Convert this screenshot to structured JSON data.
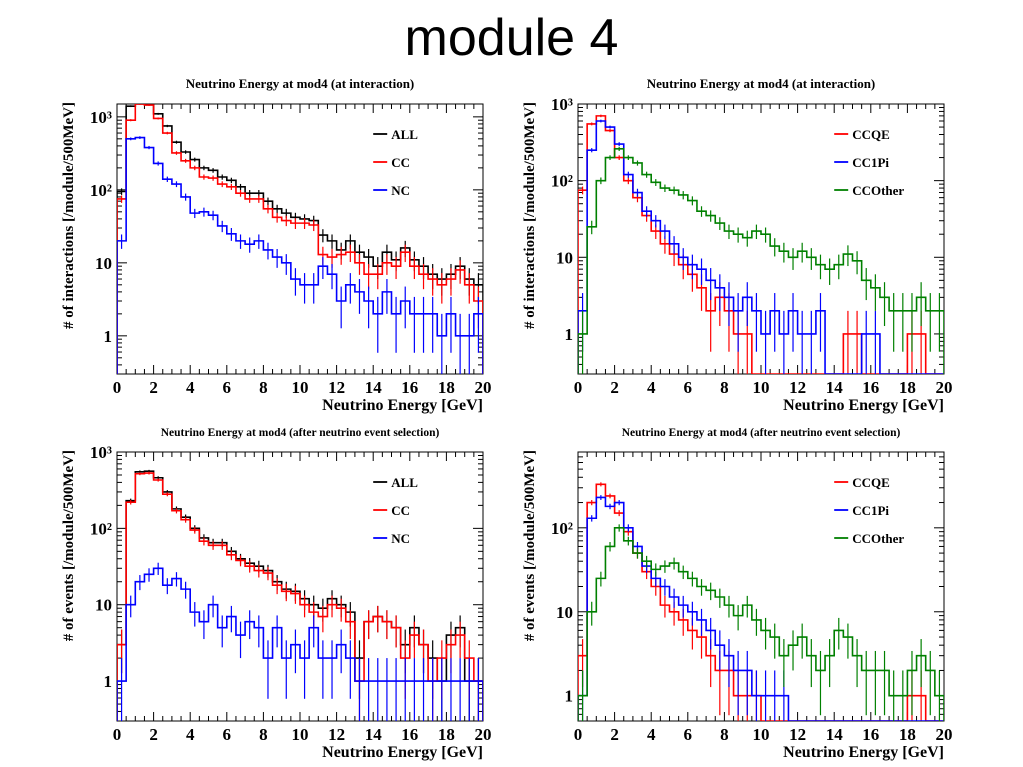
{
  "page": {
    "title": "module 4"
  },
  "chart_data": [
    {
      "type": "line",
      "title": "Neutrino Energy at mod4 (at interaction)",
      "xlabel": "Neutrino Energy [GeV]",
      "ylabel": "# of interactions [/module/500MeV]",
      "xlim": [
        0,
        20
      ],
      "ylim": [
        0.3,
        1500
      ],
      "yscale": "log",
      "xticks": [
        0,
        2,
        4,
        6,
        8,
        10,
        12,
        14,
        16,
        18,
        20
      ],
      "yticks": [
        {
          "v": 1,
          "label": "1"
        },
        {
          "v": 10,
          "label": "10"
        },
        {
          "v": 100,
          "label": "10²"
        },
        {
          "v": 1000,
          "label": "10³"
        }
      ],
      "legend_position": "top-right",
      "x": [
        0.25,
        0.75,
        1.25,
        1.75,
        2.25,
        2.75,
        3.25,
        3.75,
        4.25,
        4.75,
        5.25,
        5.75,
        6.25,
        6.75,
        7.25,
        7.75,
        8.25,
        8.75,
        9.25,
        9.75,
        10.25,
        10.75,
        11.25,
        11.75,
        12.25,
        12.75,
        13.25,
        13.75,
        14.25,
        14.75,
        15.25,
        15.75,
        16.25,
        16.75,
        17.25,
        17.75,
        18.25,
        18.75,
        19.25,
        19.75
      ],
      "series": [
        {
          "name": "ALL",
          "color": "#000000",
          "values": [
            95,
            1400,
            1950,
            1700,
            1100,
            750,
            450,
            330,
            260,
            200,
            185,
            150,
            135,
            110,
            90,
            90,
            70,
            55,
            48,
            42,
            40,
            38,
            24,
            20,
            15,
            20,
            14,
            12,
            9,
            14,
            11,
            16,
            11,
            9,
            7,
            6,
            7,
            9,
            6,
            5
          ]
        },
        {
          "name": "CC",
          "color": "#ff0000",
          "values": [
            75,
            900,
            1500,
            1450,
            950,
            600,
            320,
            250,
            200,
            150,
            145,
            120,
            110,
            90,
            75,
            75,
            55,
            42,
            38,
            35,
            35,
            33,
            13,
            12,
            13,
            14,
            10,
            7,
            7,
            10,
            9,
            14,
            9,
            7,
            6,
            5,
            6,
            8,
            5,
            3
          ]
        },
        {
          "name": "NC",
          "color": "#0000ff",
          "values": [
            20,
            500,
            520,
            380,
            230,
            140,
            120,
            80,
            48,
            50,
            45,
            32,
            25,
            20,
            18,
            20,
            15,
            12,
            10,
            6,
            5,
            5,
            9,
            7,
            3,
            5,
            4,
            3,
            2,
            4,
            2,
            3,
            2,
            2,
            2,
            1,
            2,
            1,
            1,
            2
          ]
        }
      ]
    },
    {
      "type": "line",
      "title": "Neutrino Energy at mod4 (at interaction)",
      "xlabel": "Neutrino Energy [GeV]",
      "ylabel": "# of interactions [/module/500MeV]",
      "xlim": [
        0,
        20
      ],
      "ylim": [
        0.3,
        1000
      ],
      "yscale": "log",
      "xticks": [
        0,
        2,
        4,
        6,
        8,
        10,
        12,
        14,
        16,
        18,
        20
      ],
      "yticks": [
        {
          "v": 1,
          "label": "1"
        },
        {
          "v": 10,
          "label": "10"
        },
        {
          "v": 100,
          "label": "10²"
        },
        {
          "v": 1000,
          "label": "10³"
        }
      ],
      "legend_position": "top-right",
      "x": [
        0.25,
        0.75,
        1.25,
        1.75,
        2.25,
        2.75,
        3.25,
        3.75,
        4.25,
        4.75,
        5.25,
        5.75,
        6.25,
        6.75,
        7.25,
        7.75,
        8.25,
        8.75,
        9.25,
        9.75,
        10.25,
        10.75,
        11.25,
        11.75,
        12.25,
        12.75,
        13.25,
        13.75,
        14.25,
        14.75,
        15.25,
        15.75,
        16.25,
        16.75,
        17.25,
        17.75,
        18.25,
        18.75,
        19.25,
        19.75
      ],
      "series": [
        {
          "name": "CCQE",
          "color": "#ff0000",
          "values": [
            75,
            550,
            700,
            450,
            200,
            100,
            60,
            35,
            22,
            15,
            11,
            8,
            6,
            4,
            2,
            3,
            2,
            1,
            1,
            0,
            0,
            0,
            0,
            0,
            0,
            0,
            0,
            0,
            0,
            1,
            1,
            0,
            0,
            0,
            0,
            0,
            1,
            1,
            0,
            0
          ]
        },
        {
          "name": "CC1Pi",
          "color": "#0000ff",
          "values": [
            2,
            250,
            600,
            500,
            300,
            120,
            70,
            40,
            30,
            22,
            15,
            10,
            8,
            7,
            5,
            4,
            3,
            2,
            3,
            2,
            1,
            2,
            1,
            2,
            1,
            1,
            2,
            0,
            0,
            0,
            0,
            1,
            1,
            0,
            0,
            0,
            0,
            0,
            0,
            0
          ]
        },
        {
          "name": "CCOther",
          "color": "#008000",
          "values": [
            1,
            25,
            100,
            200,
            260,
            200,
            170,
            120,
            95,
            80,
            75,
            65,
            55,
            40,
            35,
            28,
            22,
            20,
            18,
            22,
            20,
            14,
            12,
            10,
            12,
            10,
            8,
            7,
            8,
            11,
            9,
            5,
            4,
            3,
            2,
            2,
            2,
            3,
            2,
            2
          ]
        }
      ]
    },
    {
      "type": "line",
      "title": "Neutrino Energy at mod4 (after neutrino event selection)",
      "xlabel": "Neutrino Energy [GeV]",
      "ylabel": "# of events [/module/500MeV]",
      "xlim": [
        0,
        20
      ],
      "ylim": [
        0.3,
        1000
      ],
      "yscale": "log",
      "xticks": [
        0,
        2,
        4,
        6,
        8,
        10,
        12,
        14,
        16,
        18,
        20
      ],
      "yticks": [
        {
          "v": 1,
          "label": "1"
        },
        {
          "v": 10,
          "label": "10"
        },
        {
          "v": 100,
          "label": "10²"
        },
        {
          "v": 1000,
          "label": "10³"
        }
      ],
      "legend_position": "top-right",
      "x": [
        0.25,
        0.75,
        1.25,
        1.75,
        2.25,
        2.75,
        3.25,
        3.75,
        4.25,
        4.75,
        5.25,
        5.75,
        6.25,
        6.75,
        7.25,
        7.75,
        8.25,
        8.75,
        9.25,
        9.75,
        10.25,
        10.75,
        11.25,
        11.75,
        12.25,
        12.75,
        13.25,
        13.75,
        14.25,
        14.75,
        15.25,
        15.75,
        16.25,
        16.75,
        17.25,
        17.75,
        18.25,
        18.75,
        19.25,
        19.75
      ],
      "series": [
        {
          "name": "ALL",
          "color": "#000000",
          "values": [
            3,
            230,
            550,
            560,
            460,
            300,
            180,
            140,
            100,
            75,
            65,
            65,
            50,
            40,
            35,
            32,
            28,
            20,
            16,
            15,
            12,
            10,
            9,
            12,
            10,
            8,
            2,
            6,
            7,
            6,
            5,
            3,
            5,
            3,
            2,
            1,
            4,
            5,
            1,
            1
          ]
        },
        {
          "name": "CC",
          "color": "#ff0000",
          "values": [
            3,
            220,
            520,
            530,
            430,
            280,
            170,
            130,
            95,
            68,
            60,
            60,
            45,
            38,
            32,
            28,
            26,
            18,
            15,
            14,
            10,
            8,
            7,
            10,
            9,
            6,
            1,
            6,
            7,
            6,
            5,
            2,
            4,
            3,
            1,
            2,
            3,
            4,
            2,
            1
          ]
        },
        {
          "name": "NC",
          "color": "#0000ff",
          "values": [
            1,
            10,
            20,
            25,
            30,
            18,
            22,
            16,
            8,
            6,
            10,
            5,
            7,
            4,
            6,
            5,
            2,
            5,
            2,
            3,
            2,
            5,
            2,
            2,
            3,
            2,
            1,
            1,
            1,
            1,
            1,
            1,
            1,
            1,
            1,
            1,
            1,
            1,
            1,
            1
          ]
        }
      ]
    },
    {
      "type": "line",
      "title": "Neutrino Energy at mod4 (after neutrino event selection)",
      "xlabel": "Neutrino Energy [GeV]",
      "ylabel": "# of events [/module/500MeV]",
      "xlim": [
        0,
        20
      ],
      "ylim": [
        0.5,
        800
      ],
      "yscale": "log",
      "xticks": [
        0,
        2,
        4,
        6,
        8,
        10,
        12,
        14,
        16,
        18,
        20
      ],
      "yticks": [
        {
          "v": 1,
          "label": "1"
        },
        {
          "v": 10,
          "label": "10"
        },
        {
          "v": 100,
          "label": "10²"
        }
      ],
      "legend_position": "top-right",
      "x": [
        0.25,
        0.75,
        1.25,
        1.75,
        2.25,
        2.75,
        3.25,
        3.75,
        4.25,
        4.75,
        5.25,
        5.75,
        6.25,
        6.75,
        7.25,
        7.75,
        8.25,
        8.75,
        9.25,
        9.75,
        10.25,
        10.75,
        11.25,
        11.75,
        12.25,
        12.75,
        13.25,
        13.75,
        14.25,
        14.75,
        15.25,
        15.75,
        16.25,
        16.75,
        17.25,
        17.75,
        18.25,
        18.75,
        19.25,
        19.75
      ],
      "series": [
        {
          "name": "CCQE",
          "color": "#ff0000",
          "values": [
            3,
            200,
            330,
            240,
            150,
            90,
            50,
            30,
            20,
            12,
            10,
            8,
            6,
            5,
            3,
            2,
            2,
            1,
            1,
            1,
            0,
            0,
            0,
            0,
            0,
            0,
            0,
            0,
            0,
            0,
            0,
            0,
            0,
            0,
            0,
            0,
            1,
            1,
            0,
            0
          ]
        },
        {
          "name": "CC1Pi",
          "color": "#0000ff",
          "values": [
            1,
            130,
            230,
            180,
            200,
            100,
            60,
            35,
            25,
            20,
            15,
            12,
            10,
            8,
            6,
            4,
            3,
            2,
            2,
            1,
            1,
            1,
            1,
            0,
            0,
            0,
            0,
            0,
            0,
            0,
            0,
            0,
            0,
            0,
            0,
            0,
            0,
            0,
            0,
            0
          ]
        },
        {
          "name": "CCOther",
          "color": "#008000",
          "values": [
            1,
            10,
            25,
            60,
            100,
            70,
            50,
            40,
            32,
            35,
            38,
            30,
            25,
            20,
            18,
            15,
            12,
            9,
            12,
            8,
            6,
            5,
            3,
            4,
            5,
            3,
            2,
            3,
            6,
            5,
            3,
            2,
            2,
            2,
            1,
            1,
            2,
            3,
            2,
            1
          ]
        }
      ]
    }
  ]
}
